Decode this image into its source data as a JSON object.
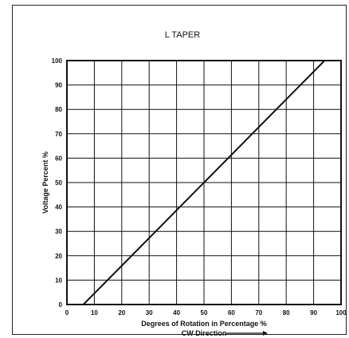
{
  "chart_data": {
    "type": "line",
    "title": "L TAPER",
    "xlabel": "Degrees of Rotation in Percentage %",
    "xlabel_sub": "CW Direction",
    "ylabel": "Voltage Percent %",
    "xlim": [
      0,
      100
    ],
    "ylim": [
      0,
      100
    ],
    "xticks": [
      "0",
      "10",
      "20",
      "30",
      "40",
      "50",
      "60",
      "70",
      "80",
      "90",
      "100"
    ],
    "yticks": [
      "0",
      "10",
      "20",
      "30",
      "40",
      "50",
      "60",
      "70",
      "80",
      "90",
      "100"
    ],
    "grid": true,
    "series": [
      {
        "x": [
          6,
          94
        ],
        "y": [
          0,
          100
        ]
      }
    ]
  }
}
